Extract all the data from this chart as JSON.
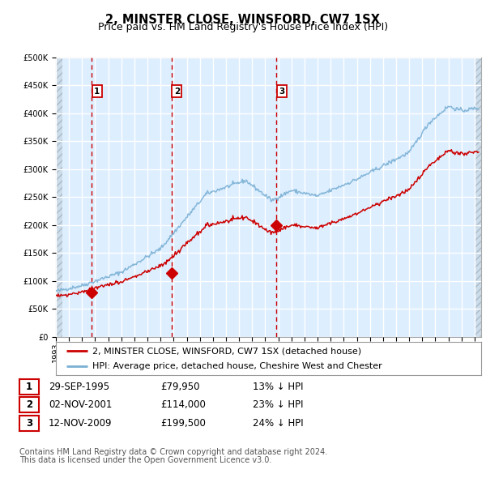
{
  "title": "2, MINSTER CLOSE, WINSFORD, CW7 1SX",
  "subtitle": "Price paid vs. HM Land Registry's House Price Index (HPI)",
  "legend_line1": "2, MINSTER CLOSE, WINSFORD, CW7 1SX (detached house)",
  "legend_line2": "HPI: Average price, detached house, Cheshire West and Chester",
  "footer1": "Contains HM Land Registry data © Crown copyright and database right 2024.",
  "footer2": "This data is licensed under the Open Government Licence v3.0.",
  "xlim_start": 1993.0,
  "xlim_end": 2025.5,
  "ylim_min": 0,
  "ylim_max": 500000,
  "sale_dates": [
    1995.747,
    2001.836,
    2009.868
  ],
  "sale_prices": [
    79950,
    114000,
    199500
  ],
  "sale_labels": [
    "1",
    "2",
    "3"
  ],
  "sale_pct": [
    "13%",
    "23%",
    "24%"
  ],
  "sale_info": [
    "29-SEP-1995",
    "02-NOV-2001",
    "12-NOV-2009"
  ],
  "hpi_color": "#7ab0d4",
  "price_color": "#cc0000",
  "bg_color": "#ddeeff",
  "grid_color": "#ffffff",
  "vline_color": "#cc0000",
  "box_color": "#cc0000",
  "title_fontsize": 10.5,
  "subtitle_fontsize": 9,
  "tick_fontsize": 7,
  "legend_fontsize": 8,
  "table_fontsize": 8.5,
  "footer_fontsize": 7
}
